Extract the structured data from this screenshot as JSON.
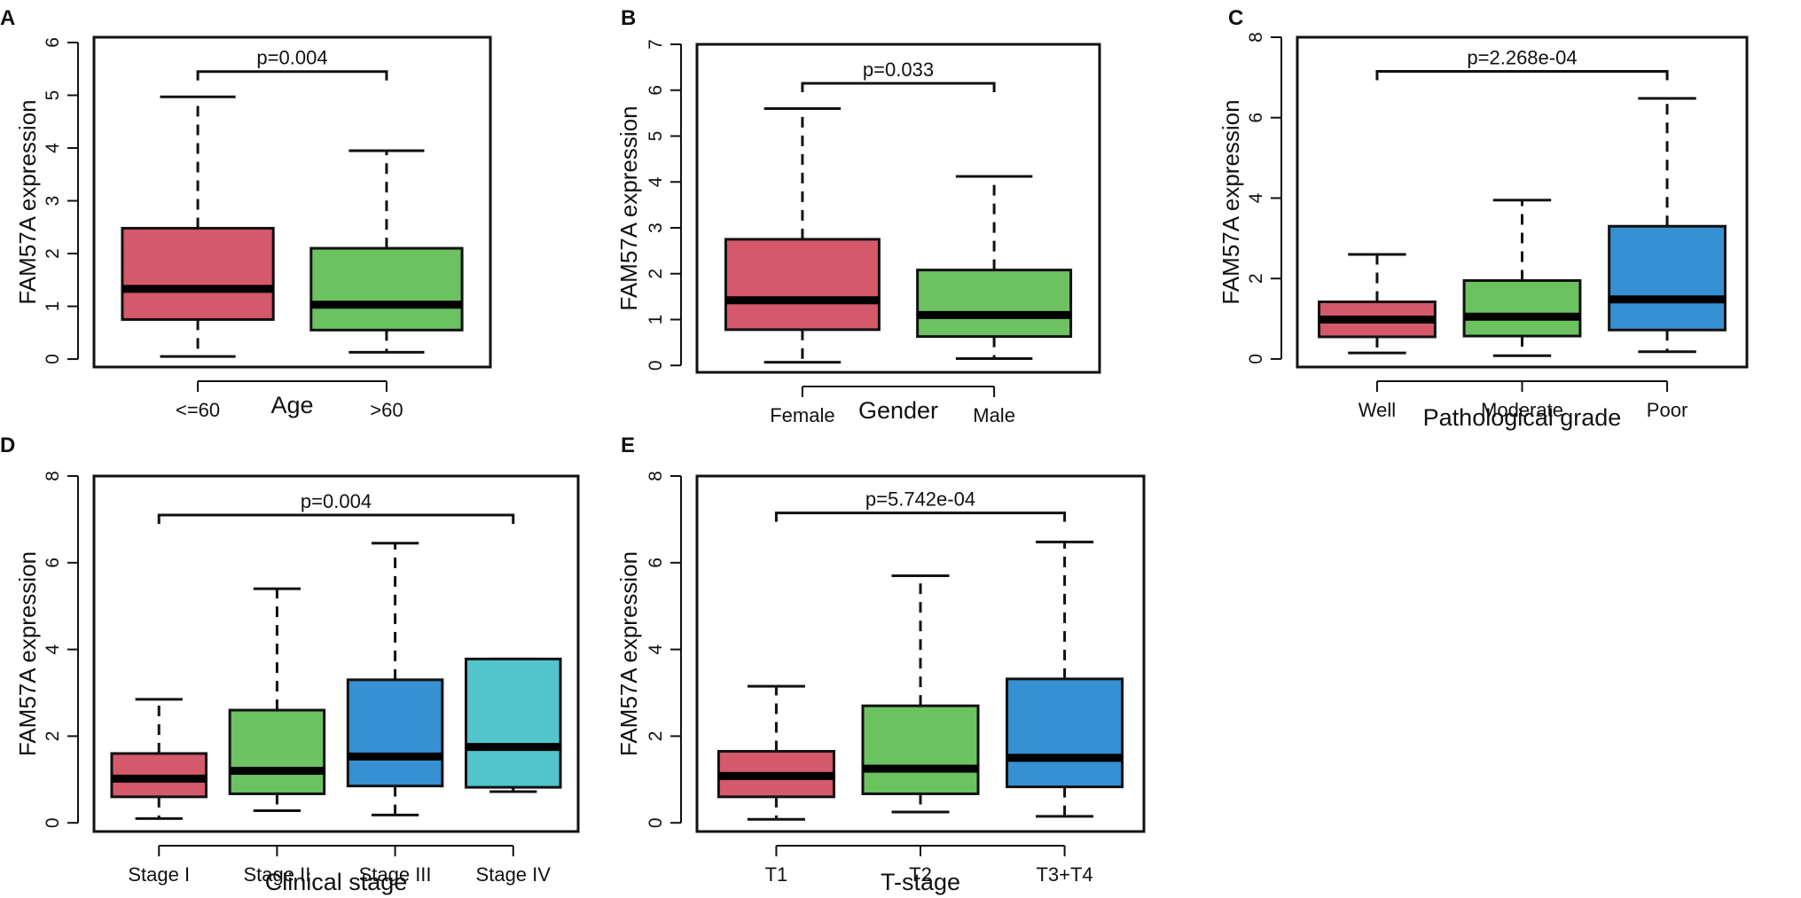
{
  "chart_data": [
    {
      "panel": "A",
      "type": "boxplot",
      "xlabel": "Age",
      "ylabel": "FAM57A expression",
      "ylim": [
        -0.15,
        6.1
      ],
      "yticks": [
        0,
        1,
        2,
        3,
        4,
        5,
        6
      ],
      "categories": [
        "<=60",
        ">60"
      ],
      "colors": [
        "#d4596b",
        "#6cc160"
      ],
      "boxes": [
        {
          "min": 0.05,
          "q1": 0.75,
          "median": 1.33,
          "q3": 2.48,
          "max": 4.97
        },
        {
          "min": 0.13,
          "q1": 0.55,
          "median": 1.03,
          "q3": 2.1,
          "max": 3.95
        }
      ],
      "comparison": {
        "from": 0,
        "to": 1,
        "y": 5.45,
        "label": "p=0.004"
      }
    },
    {
      "panel": "B",
      "type": "boxplot",
      "xlabel": "Gender",
      "ylabel": "FAM57A expression",
      "ylim": [
        -0.15,
        7.0
      ],
      "yticks": [
        0,
        1,
        2,
        3,
        4,
        5,
        6,
        7
      ],
      "categories": [
        "Female",
        "Male"
      ],
      "colors": [
        "#d4596b",
        "#6cc160"
      ],
      "boxes": [
        {
          "min": 0.07,
          "q1": 0.78,
          "median": 1.42,
          "q3": 2.75,
          "max": 5.6
        },
        {
          "min": 0.15,
          "q1": 0.63,
          "median": 1.1,
          "q3": 2.08,
          "max": 4.12
        }
      ],
      "comparison": {
        "from": 0,
        "to": 1,
        "y": 6.15,
        "label": "p=0.033"
      }
    },
    {
      "panel": "C",
      "type": "boxplot",
      "xlabel": "Pathological grade",
      "ylabel": "FAM57A expression",
      "ylim": [
        -0.2,
        8.0
      ],
      "yticks": [
        0,
        2,
        4,
        6,
        8
      ],
      "categories": [
        "Well",
        "Moderate",
        "Poor"
      ],
      "colors": [
        "#d4596b",
        "#6cc160",
        "#3690d2"
      ],
      "boxes": [
        {
          "min": 0.15,
          "q1": 0.55,
          "median": 0.98,
          "q3": 1.42,
          "max": 2.6
        },
        {
          "min": 0.08,
          "q1": 0.57,
          "median": 1.05,
          "q3": 1.95,
          "max": 3.95
        },
        {
          "min": 0.18,
          "q1": 0.72,
          "median": 1.48,
          "q3": 3.3,
          "max": 6.48
        }
      ],
      "comparison": {
        "from": 0,
        "to": 2,
        "y": 7.15,
        "label": "p=2.268e-04"
      }
    },
    {
      "panel": "D",
      "type": "boxplot",
      "xlabel": "Clinical stage",
      "ylabel": "FAM57A expression",
      "ylim": [
        -0.2,
        8.0
      ],
      "yticks": [
        0,
        2,
        4,
        6,
        8
      ],
      "categories": [
        "Stage I",
        "Stage II",
        "Stage III",
        "Stage IV"
      ],
      "colors": [
        "#d4596b",
        "#6cc160",
        "#3690d2",
        "#52c4cc"
      ],
      "boxes": [
        {
          "min": 0.1,
          "q1": 0.6,
          "median": 1.02,
          "q3": 1.6,
          "max": 2.85
        },
        {
          "min": 0.28,
          "q1": 0.67,
          "median": 1.2,
          "q3": 2.6,
          "max": 5.4
        },
        {
          "min": 0.18,
          "q1": 0.85,
          "median": 1.53,
          "q3": 3.3,
          "max": 6.45
        },
        {
          "min": 0.72,
          "q1": 0.82,
          "median": 1.75,
          "q3": 3.78,
          "max": 3.78
        }
      ],
      "comparison": {
        "from": 0,
        "to": 3,
        "y": 7.1,
        "label": "p=0.004"
      }
    },
    {
      "panel": "E",
      "type": "boxplot",
      "xlabel": "T-stage",
      "ylabel": "FAM57A expression",
      "ylim": [
        -0.2,
        8.0
      ],
      "yticks": [
        0,
        2,
        4,
        6,
        8
      ],
      "categories": [
        "T1",
        "T2",
        "T3+T4"
      ],
      "colors": [
        "#d4596b",
        "#6cc160",
        "#3690d2"
      ],
      "boxes": [
        {
          "min": 0.08,
          "q1": 0.6,
          "median": 1.08,
          "q3": 1.65,
          "max": 3.15
        },
        {
          "min": 0.25,
          "q1": 0.67,
          "median": 1.25,
          "q3": 2.7,
          "max": 5.7
        },
        {
          "min": 0.15,
          "q1": 0.83,
          "median": 1.5,
          "q3": 3.32,
          "max": 6.48
        }
      ],
      "comparison": {
        "from": 0,
        "to": 2,
        "y": 7.15,
        "label": "p=5.742e-04"
      }
    }
  ]
}
